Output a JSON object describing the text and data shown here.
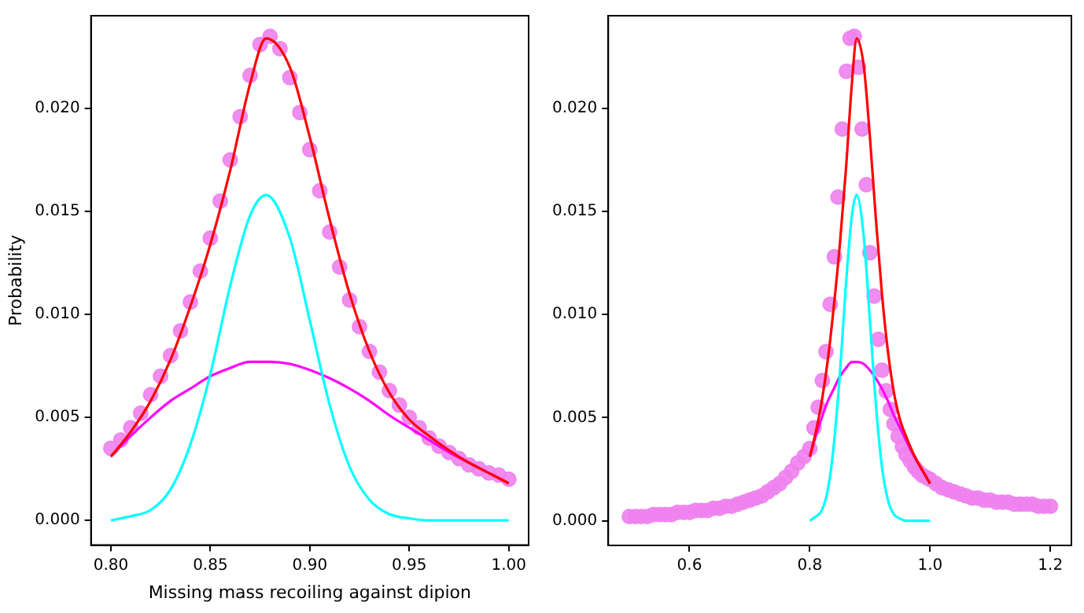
{
  "chart_data": [
    {
      "type": "line",
      "xlabel": "Missing mass recoiling against dipion",
      "ylabel": "Probability",
      "xlim": [
        0.79,
        1.01
      ],
      "xticks": [
        {
          "value": 0.8,
          "label": "0.80"
        },
        {
          "value": 0.85,
          "label": "0.85"
        },
        {
          "value": 0.9,
          "label": "0.90"
        },
        {
          "value": 0.95,
          "label": "0.95"
        },
        {
          "value": 1.0,
          "label": "1.00"
        }
      ],
      "ylim": [
        -0.0012,
        0.0245
      ],
      "yticks": [
        {
          "value": 0,
          "label": "0.000"
        },
        {
          "value": 0.005,
          "label": "0.005"
        },
        {
          "value": 0.01,
          "label": "0.010"
        },
        {
          "value": 0.015,
          "label": "0.015"
        },
        {
          "value": 0.02,
          "label": "0.020"
        }
      ],
      "series": [
        {
          "type": "scatter",
          "marker": "circle",
          "color": "#ee82ee",
          "x": [
            0.8,
            0.805,
            0.81,
            0.815,
            0.82,
            0.825,
            0.83,
            0.835,
            0.84,
            0.845,
            0.85,
            0.855,
            0.86,
            0.865,
            0.87,
            0.875,
            0.88,
            0.885,
            0.89,
            0.895,
            0.9,
            0.905,
            0.91,
            0.915,
            0.92,
            0.925,
            0.93,
            0.935,
            0.94,
            0.945,
            0.95,
            0.955,
            0.96,
            0.965,
            0.97,
            0.975,
            0.98,
            0.985,
            0.99,
            0.995,
            1.0
          ],
          "values": [
            0.0035,
            0.0039,
            0.0045,
            0.0052,
            0.0061,
            0.007,
            0.008,
            0.0092,
            0.0106,
            0.0121,
            0.0137,
            0.0155,
            0.0175,
            0.0196,
            0.0216,
            0.0231,
            0.0235,
            0.0229,
            0.0215,
            0.0198,
            0.018,
            0.016,
            0.014,
            0.0123,
            0.0107,
            0.0094,
            0.0082,
            0.0072,
            0.0063,
            0.0056,
            0.005,
            0.0045,
            0.004,
            0.0036,
            0.0033,
            0.003,
            0.0027,
            0.0025,
            0.0023,
            0.0022,
            0.002
          ]
        },
        {
          "type": "line",
          "color": "#ff0000",
          "x": [
            0.8,
            0.81,
            0.82,
            0.83,
            0.84,
            0.85,
            0.86,
            0.87,
            0.878,
            0.89,
            0.9,
            0.91,
            0.92,
            0.93,
            0.94,
            0.95,
            0.96,
            0.97,
            0.98,
            0.99,
            1.0
          ],
          "values": [
            0.0031,
            0.0043,
            0.0058,
            0.0078,
            0.0104,
            0.0134,
            0.017,
            0.0212,
            0.0234,
            0.022,
            0.0186,
            0.0146,
            0.011,
            0.0082,
            0.0062,
            0.0049,
            0.0041,
            0.0034,
            0.0028,
            0.0023,
            0.0018
          ]
        },
        {
          "type": "line",
          "color": "#00ffff",
          "x": [
            0.8,
            0.81,
            0.82,
            0.83,
            0.84,
            0.85,
            0.86,
            0.87,
            0.878,
            0.89,
            0.9,
            0.91,
            0.92,
            0.93,
            0.94,
            0.95,
            0.96,
            0.97,
            0.98,
            0.99,
            1.0
          ],
          "values": [
            0.0,
            0.0002,
            0.0005,
            0.0015,
            0.0037,
            0.0071,
            0.0114,
            0.0148,
            0.0158,
            0.0137,
            0.0097,
            0.0056,
            0.0026,
            0.001,
            0.0003,
            0.0001,
            0.0,
            0.0,
            0.0,
            0.0,
            0.0
          ]
        },
        {
          "type": "line",
          "color": "#ff00ff",
          "x": [
            0.8,
            0.81,
            0.82,
            0.83,
            0.84,
            0.85,
            0.86,
            0.87,
            0.88,
            0.89,
            0.9,
            0.91,
            0.92,
            0.93,
            0.94,
            0.95,
            0.96,
            0.97,
            0.98,
            0.99,
            1.0
          ],
          "values": [
            0.0031,
            0.0041,
            0.005,
            0.0058,
            0.0064,
            0.007,
            0.0074,
            0.0077,
            0.0077,
            0.0076,
            0.0073,
            0.0069,
            0.0064,
            0.0058,
            0.0051,
            0.0045,
            0.0039,
            0.0033,
            0.0028,
            0.0023,
            0.0018
          ]
        }
      ]
    },
    {
      "type": "line",
      "xlim": [
        0.465,
        1.235
      ],
      "xticks": [
        {
          "value": 0.6,
          "label": "0.6"
        },
        {
          "value": 0.8,
          "label": "0.8"
        },
        {
          "value": 1.0,
          "label": "1.0"
        },
        {
          "value": 1.2,
          "label": "1.2"
        }
      ],
      "ylim": [
        -0.0012,
        0.0245
      ],
      "yticks": [
        {
          "value": 0,
          "label": "0.000"
        },
        {
          "value": 0.005,
          "label": "0.005"
        },
        {
          "value": 0.01,
          "label": "0.010"
        },
        {
          "value": 0.015,
          "label": "0.015"
        },
        {
          "value": 0.02,
          "label": "0.020"
        }
      ],
      "series": [
        {
          "type": "scatter",
          "marker": "circle",
          "color": "#ee82ee",
          "x": [
            0.5,
            0.51,
            0.52,
            0.53,
            0.54,
            0.55,
            0.56,
            0.57,
            0.58,
            0.59,
            0.6,
            0.61,
            0.62,
            0.63,
            0.64,
            0.65,
            0.66,
            0.67,
            0.68,
            0.69,
            0.7,
            0.71,
            0.72,
            0.73,
            0.74,
            0.75,
            0.76,
            0.77,
            0.78,
            0.79,
            0.8,
            0.807,
            0.814,
            0.821,
            0.827,
            0.834,
            0.841,
            0.847,
            0.854,
            0.861,
            0.867,
            0.874,
            0.881,
            0.887,
            0.894,
            0.9,
            0.907,
            0.914,
            0.92,
            0.927,
            0.934,
            0.94,
            0.947,
            0.954,
            0.96,
            0.967,
            0.974,
            0.98,
            0.987,
            0.994,
            1.0,
            1.01,
            1.02,
            1.03,
            1.04,
            1.05,
            1.06,
            1.07,
            1.08,
            1.09,
            1.1,
            1.11,
            1.12,
            1.13,
            1.14,
            1.15,
            1.16,
            1.17,
            1.18,
            1.19,
            1.2
          ],
          "values": [
            0.0002,
            0.0002,
            0.0002,
            0.0002,
            0.0003,
            0.0003,
            0.0003,
            0.0003,
            0.0004,
            0.0004,
            0.0004,
            0.0005,
            0.0005,
            0.0005,
            0.0006,
            0.0006,
            0.0007,
            0.0007,
            0.0008,
            0.0009,
            0.001,
            0.0011,
            0.0012,
            0.0014,
            0.0016,
            0.0018,
            0.0021,
            0.0024,
            0.0028,
            0.0031,
            0.0035,
            0.0045,
            0.0055,
            0.0068,
            0.0082,
            0.0105,
            0.0128,
            0.0157,
            0.019,
            0.0218,
            0.0234,
            0.0235,
            0.022,
            0.019,
            0.0163,
            0.013,
            0.0109,
            0.0088,
            0.0073,
            0.0063,
            0.0054,
            0.0047,
            0.0041,
            0.0036,
            0.0032,
            0.0029,
            0.0026,
            0.0024,
            0.0022,
            0.0021,
            0.002,
            0.0018,
            0.0016,
            0.0015,
            0.0014,
            0.0013,
            0.0012,
            0.0011,
            0.0011,
            0.001,
            0.001,
            0.0009,
            0.0009,
            0.0009,
            0.0008,
            0.0008,
            0.0008,
            0.0008,
            0.0007,
            0.0007,
            0.0007
          ]
        },
        {
          "type": "line",
          "color": "#ff0000",
          "x": [
            0.8,
            0.81,
            0.82,
            0.83,
            0.84,
            0.85,
            0.86,
            0.87,
            0.878,
            0.89,
            0.9,
            0.91,
            0.92,
            0.93,
            0.94,
            0.95,
            0.96,
            0.97,
            0.98,
            0.99,
            1.0
          ],
          "values": [
            0.0031,
            0.0043,
            0.0058,
            0.0078,
            0.0104,
            0.0134,
            0.017,
            0.0212,
            0.0234,
            0.022,
            0.0186,
            0.0146,
            0.011,
            0.0082,
            0.0062,
            0.0049,
            0.0041,
            0.0034,
            0.0028,
            0.0023,
            0.0018
          ]
        },
        {
          "type": "line",
          "color": "#00ffff",
          "x": [
            0.8,
            0.81,
            0.82,
            0.83,
            0.84,
            0.85,
            0.86,
            0.87,
            0.878,
            0.89,
            0.9,
            0.91,
            0.92,
            0.93,
            0.94,
            0.95,
            0.96,
            0.97,
            0.98,
            0.99,
            1.0
          ],
          "values": [
            0.0,
            0.0002,
            0.0005,
            0.0015,
            0.0037,
            0.0071,
            0.0114,
            0.0148,
            0.0158,
            0.0137,
            0.0097,
            0.0056,
            0.0026,
            0.001,
            0.0003,
            0.0001,
            0.0,
            0.0,
            0.0,
            0.0,
            0.0
          ]
        },
        {
          "type": "line",
          "color": "#ff00ff",
          "x": [
            0.8,
            0.81,
            0.82,
            0.83,
            0.84,
            0.85,
            0.86,
            0.87,
            0.88,
            0.89,
            0.9,
            0.91,
            0.92,
            0.93,
            0.94,
            0.95,
            0.96,
            0.97,
            0.98,
            0.99,
            1.0
          ],
          "values": [
            0.0031,
            0.0041,
            0.005,
            0.0058,
            0.0064,
            0.007,
            0.0074,
            0.0077,
            0.0077,
            0.0076,
            0.0073,
            0.0069,
            0.0064,
            0.0058,
            0.0051,
            0.0045,
            0.0039,
            0.0033,
            0.0028,
            0.0023,
            0.0018
          ]
        }
      ]
    }
  ]
}
